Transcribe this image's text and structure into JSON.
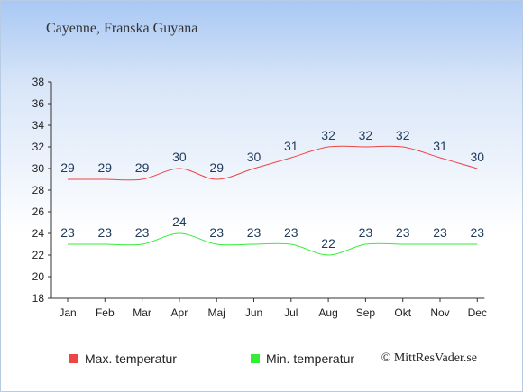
{
  "chart_data": {
    "type": "line",
    "title": "Cayenne, Franska Guyana",
    "categories": [
      "Jan",
      "Feb",
      "Mar",
      "Apr",
      "Maj",
      "Jun",
      "Jul",
      "Aug",
      "Sep",
      "Okt",
      "Nov",
      "Dec"
    ],
    "ylim": [
      18,
      38
    ],
    "yticks": [
      18,
      20,
      22,
      24,
      26,
      28,
      30,
      32,
      34,
      36,
      38
    ],
    "grid": false,
    "legend_position": "bottom-left",
    "series": [
      {
        "name": "Max. temperatur",
        "color": "#ee4444",
        "values": [
          29,
          29,
          29,
          30,
          29,
          30,
          31,
          32,
          32,
          32,
          31,
          30
        ]
      },
      {
        "name": "Min. temperatur",
        "color": "#33ee33",
        "values": [
          23,
          23,
          23,
          24,
          23,
          23,
          23,
          22,
          23,
          23,
          23,
          23
        ]
      }
    ],
    "credit": "© MittResVader.se"
  }
}
